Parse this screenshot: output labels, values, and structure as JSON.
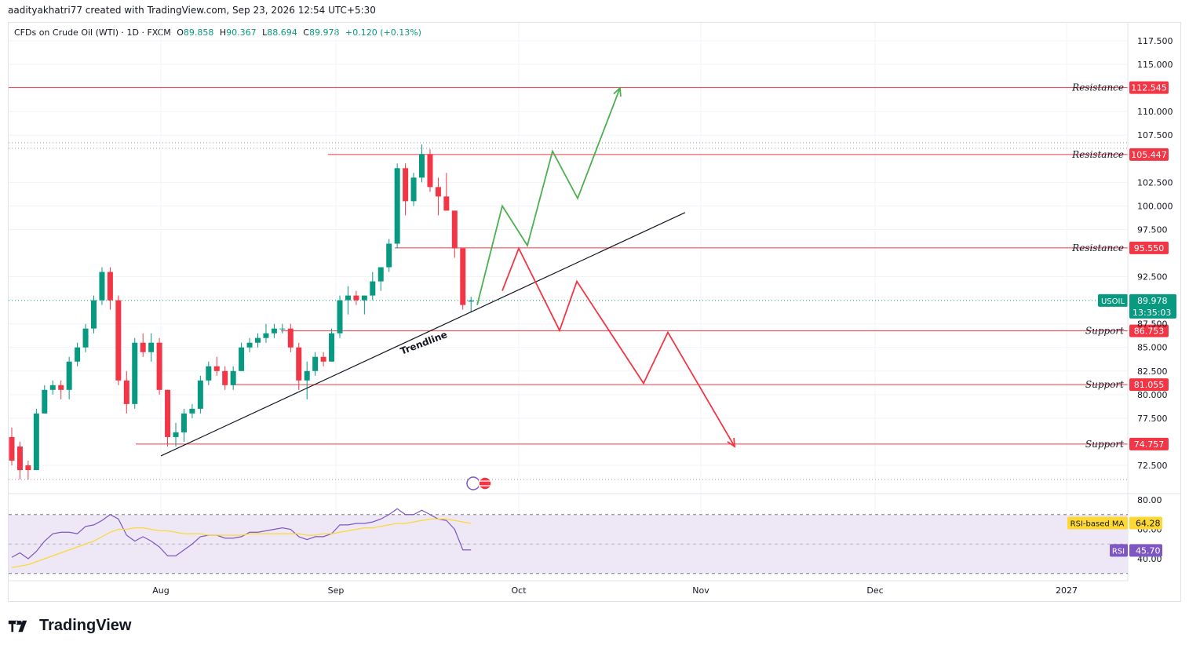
{
  "header": {
    "attribution": "aadityakhatri77 created with TradingView.com, Sep 23, 2026 12:54 UTC+5:30"
  },
  "legend": {
    "title": "CFDs on Crude Oil (WTI) · 1D · FXCM",
    "o_label": "O",
    "o": "89.858",
    "h_label": "H",
    "h": "90.367",
    "l_label": "L",
    "l": "88.694",
    "c_label": "C",
    "c": "89.978",
    "change": "+0.120 (+0.13%)"
  },
  "brand": {
    "name": "TradingView"
  },
  "colors": {
    "up": "#089981",
    "down": "#f23645",
    "level": "#f23645",
    "projection_up": "#4caf50",
    "projection_down": "#f23645",
    "rsi": "#7e57c2",
    "rsi_ma": "#fdd835",
    "rsi_band": "#ede7f6"
  },
  "chart_data": {
    "type": "candlestick",
    "symbol": "USOIL",
    "price_axis": {
      "min": 70.5,
      "max": 118.5,
      "ticks": [
        "117.500",
        "115.000",
        "110.000",
        "107.500",
        "102.500",
        "100.000",
        "97.500",
        "92.500",
        "87.500",
        "85.000",
        "82.500",
        "80.000",
        "77.500",
        "72.500"
      ]
    },
    "time_axis": {
      "labels": [
        "Aug",
        "Sep",
        "Oct",
        "Nov",
        "Dec",
        "2027"
      ]
    },
    "last_price": {
      "symbol": "USOIL",
      "value": "89.978",
      "countdown": "13:35:03"
    },
    "levels": [
      {
        "label": "Resistance",
        "value": "112.545",
        "v": 112.545
      },
      {
        "label": "Resistance",
        "value": "105.447",
        "v": 105.447
      },
      {
        "label": "Resistance",
        "value": "95.550",
        "v": 95.55
      },
      {
        "label": "Support",
        "value": "86.753",
        "v": 86.753
      },
      {
        "label": "Support",
        "value": "81.055",
        "v": 81.055
      },
      {
        "label": "Support",
        "value": "74.757",
        "v": 74.757
      }
    ],
    "trendline": {
      "label": "Trendline"
    },
    "candles": [
      [
        75.5,
        76.5,
        72.5,
        73.0
      ],
      [
        74.5,
        75.0,
        71.0,
        72.0
      ],
      [
        72.5,
        73.0,
        71.0,
        72.0
      ],
      [
        72.0,
        78.5,
        72.0,
        78.0
      ],
      [
        78.0,
        81.0,
        78.0,
        80.5
      ],
      [
        80.5,
        81.5,
        80.0,
        81.0
      ],
      [
        81.0,
        81.5,
        79.5,
        80.5
      ],
      [
        80.5,
        84.0,
        79.5,
        83.5
      ],
      [
        83.5,
        85.5,
        83.0,
        85.0
      ],
      [
        85.0,
        87.5,
        84.5,
        87.0
      ],
      [
        87.0,
        90.5,
        86.5,
        90.0
      ],
      [
        90.0,
        93.5,
        89.5,
        93.0
      ],
      [
        93.0,
        93.5,
        89.0,
        90.0
      ],
      [
        90.0,
        90.5,
        81.0,
        81.5
      ],
      [
        81.5,
        82.5,
        78.0,
        79.0
      ],
      [
        79.0,
        86.0,
        78.5,
        85.5
      ],
      [
        85.5,
        86.5,
        84.0,
        84.5
      ],
      [
        84.5,
        86.5,
        83.5,
        85.5
      ],
      [
        85.5,
        86.0,
        80.0,
        80.5
      ],
      [
        80.5,
        80.5,
        74.5,
        75.5
      ],
      [
        75.5,
        77.0,
        74.5,
        76.0
      ],
      [
        76.0,
        78.5,
        75.0,
        78.0
      ],
      [
        78.0,
        79.0,
        77.5,
        78.5
      ],
      [
        78.5,
        82.0,
        78.0,
        81.5
      ],
      [
        81.5,
        83.5,
        81.0,
        83.0
      ],
      [
        83.0,
        84.0,
        82.0,
        82.5
      ],
      [
        82.5,
        83.0,
        80.5,
        81.0
      ],
      [
        81.0,
        83.0,
        80.5,
        82.5
      ],
      [
        82.5,
        85.5,
        82.5,
        85.0
      ],
      [
        85.0,
        86.0,
        84.5,
        85.5
      ],
      [
        85.5,
        86.5,
        85.0,
        86.0
      ],
      [
        86.0,
        87.5,
        85.5,
        86.5
      ],
      [
        86.5,
        87.5,
        86.0,
        87.0
      ],
      [
        87.0,
        87.5,
        86.5,
        87.0
      ],
      [
        87.0,
        87.5,
        84.5,
        85.0
      ],
      [
        85.0,
        85.5,
        80.5,
        81.5
      ],
      [
        81.5,
        83.5,
        79.5,
        82.5
      ],
      [
        82.5,
        84.5,
        82.0,
        84.0
      ],
      [
        84.0,
        84.5,
        83.0,
        83.5
      ],
      [
        83.5,
        87.0,
        83.5,
        86.5
      ],
      [
        86.5,
        90.5,
        86.0,
        90.0
      ],
      [
        90.0,
        91.5,
        88.5,
        90.5
      ],
      [
        90.5,
        91.0,
        89.5,
        90.0
      ],
      [
        90.0,
        90.5,
        88.5,
        90.5
      ],
      [
        90.5,
        93.0,
        90.0,
        92.0
      ],
      [
        92.0,
        93.5,
        91.0,
        93.5
      ],
      [
        93.5,
        96.5,
        93.0,
        96.0
      ],
      [
        96.0,
        104.5,
        95.5,
        104.0
      ],
      [
        104.0,
        104.5,
        99.0,
        100.5
      ],
      [
        100.5,
        103.5,
        100.0,
        103.0
      ],
      [
        103.0,
        106.5,
        102.5,
        105.5
      ],
      [
        105.5,
        106.0,
        101.5,
        102.0
      ],
      [
        102.0,
        103.0,
        99.0,
        101.0
      ],
      [
        101.0,
        103.5,
        99.5,
        99.5
      ],
      [
        99.5,
        99.5,
        94.5,
        95.5
      ],
      [
        95.5,
        95.5,
        89.0,
        89.5
      ],
      [
        89.858,
        90.367,
        88.694,
        89.978
      ]
    ],
    "rsi": {
      "axis": {
        "ticks": [
          "80.00",
          "60.00",
          "40.00"
        ],
        "overbought": 70,
        "oversold": 30,
        "min": 28,
        "max": 83
      },
      "rsi_label": "RSI",
      "rsi_value": "45.70",
      "ma_label": "RSI-based MA",
      "ma_value": "64.28",
      "rsi_values": [
        41,
        44,
        40,
        45,
        52,
        57,
        58,
        58,
        57,
        62,
        63,
        66,
        70,
        67,
        56,
        52,
        55,
        52,
        48,
        42,
        42,
        46,
        50,
        55,
        56,
        56,
        54,
        54,
        55,
        58,
        58,
        59,
        60,
        61,
        60,
        55,
        53,
        55,
        55,
        57,
        63,
        63,
        64,
        64,
        65,
        67,
        70,
        74,
        70,
        70,
        73,
        70,
        67,
        66,
        60,
        46,
        46
      ],
      "ma_values": [
        34,
        35,
        36,
        38,
        40,
        42,
        44,
        46,
        48,
        50,
        52,
        55,
        58,
        60,
        60,
        61,
        61,
        60,
        59,
        59,
        58,
        57,
        57,
        57,
        56,
        56,
        56,
        56,
        56,
        57,
        57,
        57,
        57,
        57,
        57,
        57,
        56,
        56,
        57,
        57,
        58,
        59,
        60,
        61,
        61,
        62,
        63,
        64,
        64,
        65,
        66,
        67,
        67,
        67,
        66,
        65,
        64
      ]
    },
    "projection_up": [
      [
        89.5,
        0
      ],
      [
        100.0,
        1
      ],
      [
        95.8,
        2
      ],
      [
        105.8,
        3
      ],
      [
        100.8,
        4
      ],
      [
        112.5,
        5
      ]
    ],
    "projection_down": [
      [
        91.0,
        0
      ],
      [
        95.5,
        1
      ],
      [
        86.8,
        2
      ],
      [
        92.0,
        3
      ],
      [
        81.2,
        4
      ],
      [
        86.6,
        5
      ],
      [
        74.5,
        6
      ]
    ]
  }
}
